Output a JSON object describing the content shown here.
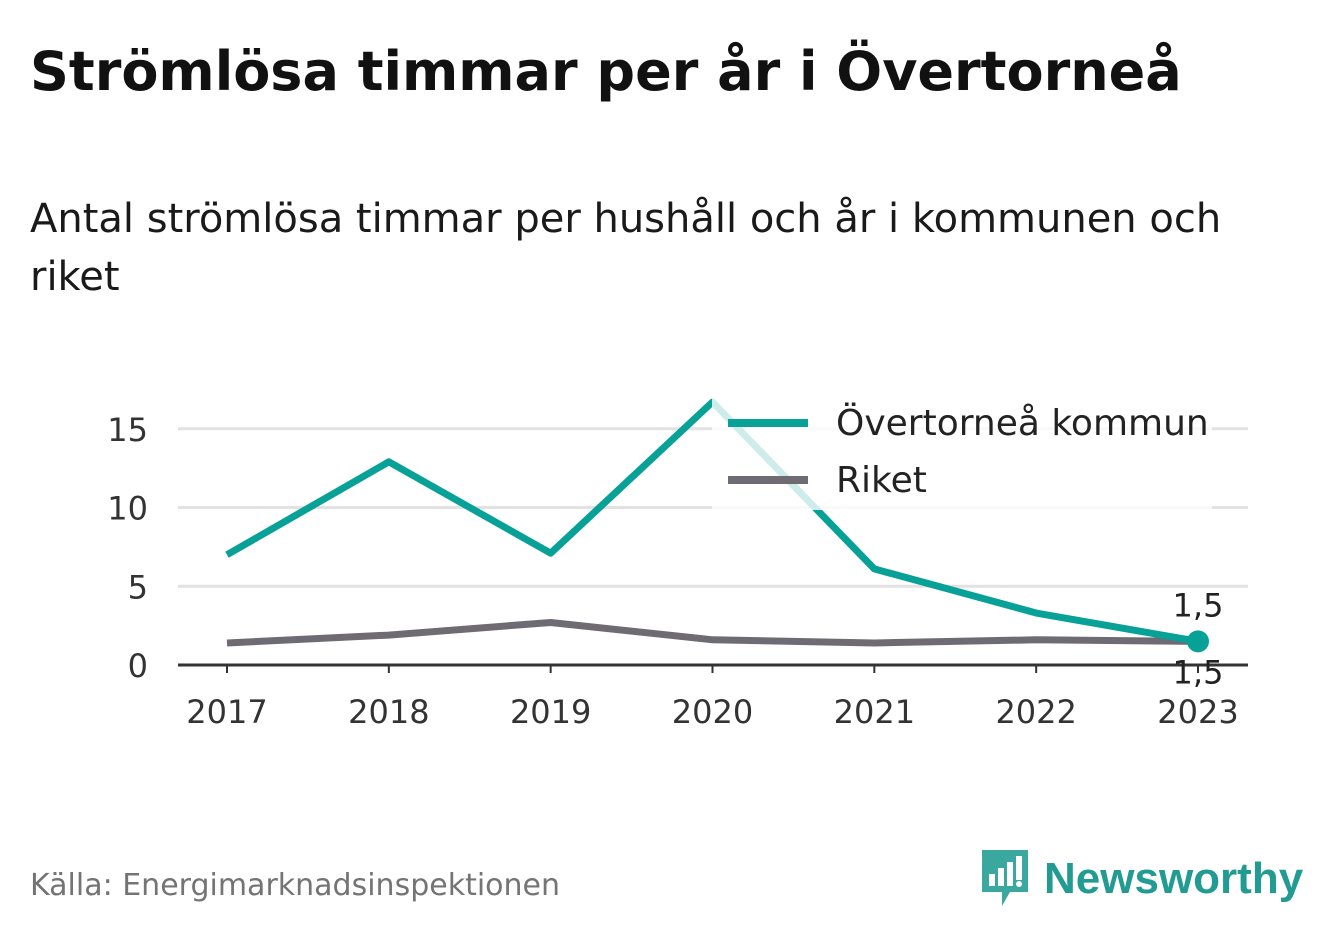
{
  "title": "Strömlösa timmar per år i Övertorneå",
  "subtitle": "Antal strömlösa timmar per hushåll och år i kommunen och riket",
  "source": "Källa: Energimarknadsinspektionen",
  "brand": {
    "name": "Newsworthy",
    "icon": "newsworthy-logo-icon",
    "color": "#229b92"
  },
  "chart_data": {
    "type": "line",
    "x": [
      "2017",
      "2018",
      "2019",
      "2020",
      "2021",
      "2022",
      "2023"
    ],
    "ylim": [
      0,
      16.7
    ],
    "yticks": [
      0,
      5,
      10,
      15
    ],
    "grid": true,
    "legend": "top-right",
    "series": [
      {
        "name": "Övertorneå kommun",
        "color": "#07a198",
        "values": [
          7.0,
          12.9,
          7.1,
          16.7,
          6.1,
          3.3,
          1.5
        ],
        "end_label": "1,5"
      },
      {
        "name": "Riket",
        "color": "#6e6c72",
        "values": [
          1.4,
          1.9,
          2.7,
          1.6,
          1.4,
          1.6,
          1.5
        ],
        "end_label": "1,5"
      }
    ]
  }
}
